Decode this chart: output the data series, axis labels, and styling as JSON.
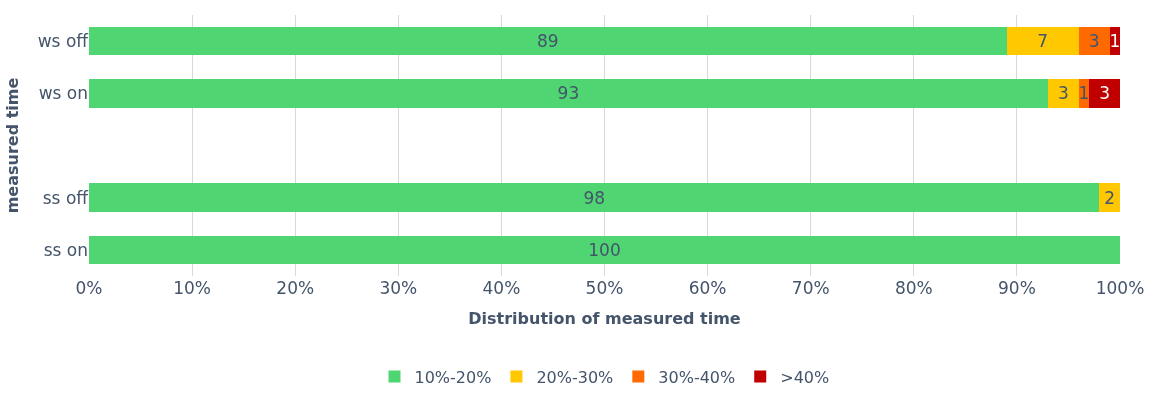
{
  "chart_data": {
    "type": "bar",
    "orientation": "horizontal",
    "stacked": true,
    "data_labels": true,
    "xlabel": "Distribution of measured time",
    "ylabel": "measured time",
    "categories": [
      "ws off",
      "ws on",
      null,
      "ss off",
      "ss on"
    ],
    "series": [
      {
        "name": "10%-20%",
        "color": "#4fd672",
        "values": [
          89,
          93,
          null,
          98,
          100
        ]
      },
      {
        "name": "20%-30%",
        "color": "#ffc800",
        "values": [
          7,
          3,
          null,
          2,
          null
        ]
      },
      {
        "name": "30%-40%",
        "color": "#ff6a00",
        "values": [
          3,
          1,
          null,
          null,
          null
        ]
      },
      {
        "name": ">40%",
        "color": "#c00000",
        "values": [
          1,
          3,
          null,
          null,
          null
        ]
      }
    ],
    "xlim": [
      0,
      100
    ],
    "xticks": [
      {
        "value": 0,
        "label": "0%"
      },
      {
        "value": 10,
        "label": "10%"
      },
      {
        "value": 20,
        "label": "20%"
      },
      {
        "value": 30,
        "label": "30%"
      },
      {
        "value": 40,
        "label": "40%"
      },
      {
        "value": 50,
        "label": "50%"
      },
      {
        "value": 60,
        "label": "60%"
      },
      {
        "value": 70,
        "label": "70%"
      },
      {
        "value": 80,
        "label": "80%"
      },
      {
        "value": 90,
        "label": "90%"
      },
      {
        "value": 100,
        "label": "100%"
      }
    ],
    "grid": "x",
    "legend": "bottom"
  }
}
